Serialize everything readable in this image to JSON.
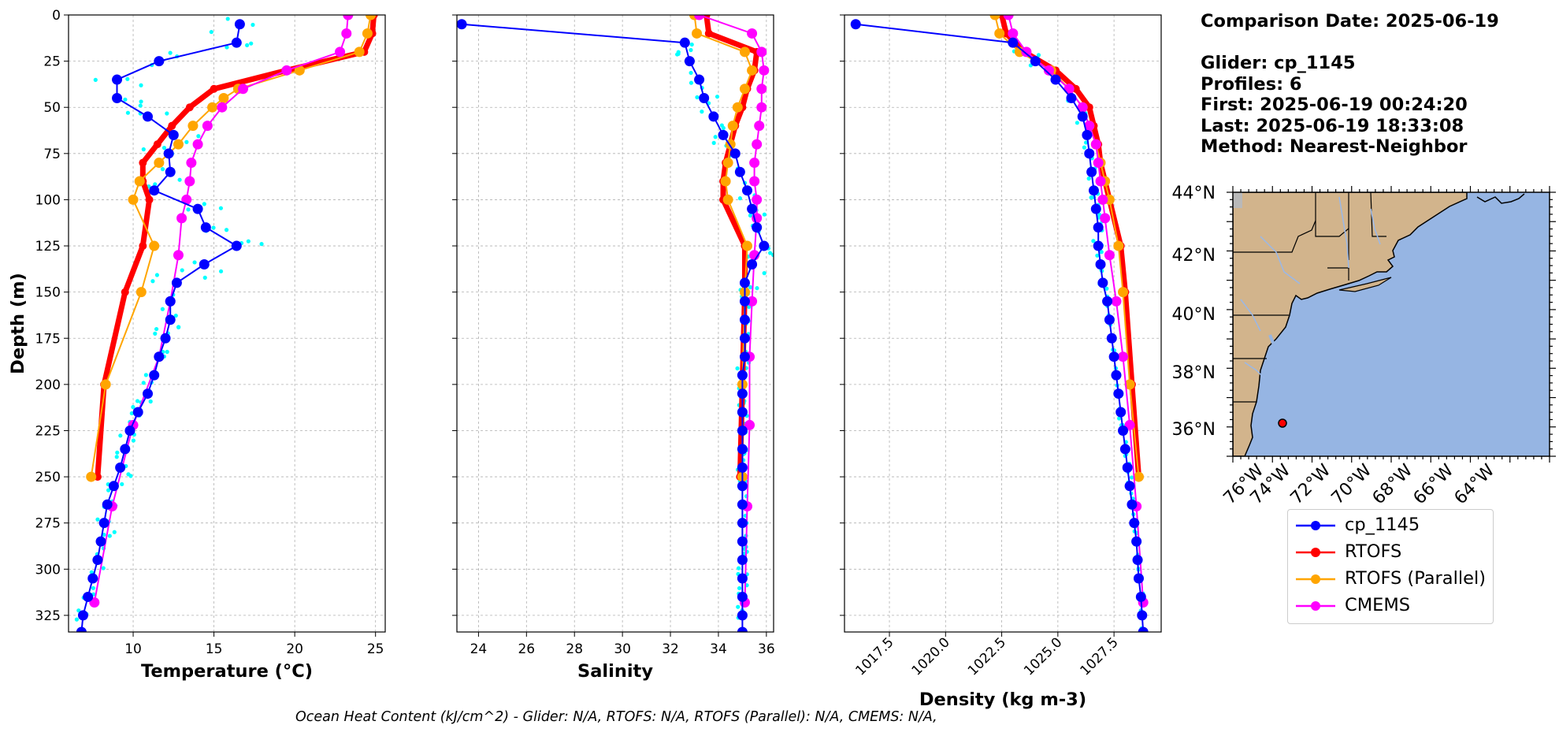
{
  "info": {
    "comparison_date": "Comparison Date: 2025-06-19",
    "glider": "Glider: cp_1145",
    "profiles": "Profiles: 6",
    "first": "First: 2025-06-19 00:24:20",
    "last": "Last: 2025-06-19 18:33:08",
    "method": "Method: Nearest-Neighbor"
  },
  "ohc_text": "Ocean Heat Content (kJ/cm^2) - Glider: N/A,  RTOFS: N/A,  RTOFS (Parallel): N/A,  CMEMS: N/A,",
  "colors": {
    "glider": "#0000ff",
    "glider_raw": "#00ffff",
    "rtofs": "#ff0000",
    "rtofs_parallel": "#ffa500",
    "cmems": "#ff00ff",
    "land": "#d2b48c",
    "ocean": "#96b5e3",
    "rivers": "#9ab8e8",
    "grid": "#b0b0b0"
  },
  "legend": [
    {
      "label": "cp_1145",
      "color": "#0000ff"
    },
    {
      "label": "RTOFS",
      "color": "#ff0000"
    },
    {
      "label": "RTOFS (Parallel)",
      "color": "#ffa500"
    },
    {
      "label": "CMEMS",
      "color": "#ff00ff"
    }
  ],
  "chart_data": [
    {
      "type": "line",
      "xlabel": "Temperature (°C)",
      "ylabel": "Depth (m)",
      "xlim": [
        6,
        25.6
      ],
      "ylim": [
        334,
        0
      ],
      "xticks": [
        10,
        15,
        20,
        25
      ],
      "yticks": [
        0,
        25,
        50,
        75,
        100,
        125,
        150,
        175,
        200,
        225,
        250,
        275,
        300,
        325
      ],
      "grid": true,
      "series": [
        {
          "name": "cp_1145",
          "depth": [
            5,
            15,
            25,
            35,
            45,
            55,
            65,
            75,
            85,
            95,
            105,
            115,
            125,
            135,
            145,
            155,
            165,
            175,
            185,
            195,
            205,
            215,
            225,
            235,
            245,
            255,
            265,
            275,
            285,
            295,
            305,
            315,
            325,
            334
          ],
          "values": [
            16.6,
            16.4,
            11.6,
            9.0,
            9.0,
            10.9,
            12.5,
            12.2,
            12.3,
            11.3,
            14.0,
            14.5,
            16.4,
            14.4,
            12.7,
            12.3,
            12.3,
            12.0,
            11.6,
            11.3,
            10.9,
            10.3,
            9.8,
            9.5,
            9.2,
            8.8,
            8.4,
            8.2,
            8.0,
            7.8,
            7.5,
            7.2,
            6.9,
            6.8
          ]
        },
        {
          "name": "RTOFS",
          "depth": [
            0,
            10,
            20,
            30,
            40,
            50,
            60,
            70,
            80,
            90,
            100,
            125,
            150,
            200,
            250
          ],
          "values": [
            24.9,
            24.8,
            24.3,
            19.5,
            15.0,
            13.5,
            12.4,
            11.5,
            10.6,
            10.6,
            11.0,
            10.6,
            9.5,
            8.2,
            7.8
          ]
        },
        {
          "name": "RTOFS (Parallel)",
          "depth": [
            0,
            10,
            20,
            30,
            40,
            45,
            50,
            60,
            70,
            80,
            90,
            100,
            125,
            150,
            200,
            250
          ],
          "values": [
            24.7,
            24.5,
            24.0,
            20.3,
            16.5,
            15.6,
            14.9,
            13.7,
            12.8,
            11.6,
            10.4,
            10.0,
            11.3,
            10.5,
            8.3,
            7.4
          ]
        },
        {
          "name": "CMEMS",
          "depth": [
            0,
            10,
            20,
            30,
            40,
            50,
            60,
            70,
            80,
            90,
            100,
            110,
            130,
            155,
            185,
            222,
            266,
            318
          ],
          "values": [
            23.3,
            23.2,
            22.8,
            19.5,
            16.8,
            15.5,
            14.6,
            14.0,
            13.6,
            13.5,
            13.3,
            13.0,
            12.8,
            12.3,
            11.6,
            10.0,
            8.7,
            7.6
          ]
        }
      ]
    },
    {
      "type": "line",
      "xlabel": "Salinity",
      "ylabel": "",
      "xlim": [
        23.1,
        36.3
      ],
      "ylim": [
        334,
        0
      ],
      "xticks": [
        24,
        26,
        28,
        30,
        32,
        34,
        36
      ],
      "yticks": [
        0,
        25,
        50,
        75,
        100,
        125,
        150,
        175,
        200,
        225,
        250,
        275,
        300,
        325
      ],
      "grid": true,
      "series": [
        {
          "name": "cp_1145",
          "depth": [
            5,
            15,
            25,
            35,
            45,
            55,
            65,
            75,
            85,
            95,
            105,
            115,
            125,
            135,
            145,
            155,
            165,
            175,
            185,
            195,
            205,
            215,
            225,
            235,
            245,
            255,
            265,
            275,
            285,
            295,
            305,
            315,
            325,
            334
          ],
          "values": [
            23.3,
            32.6,
            32.8,
            33.2,
            33.4,
            33.8,
            34.2,
            34.7,
            34.9,
            35.2,
            35.4,
            35.6,
            35.9,
            35.4,
            35.1,
            35.1,
            35.1,
            35.1,
            35.1,
            35.0,
            35.0,
            35.0,
            35.0,
            35.0,
            35.0,
            35.0,
            35.0,
            35.0,
            35.0,
            35.0,
            35.0,
            35.0,
            35.0,
            35.0
          ]
        },
        {
          "name": "RTOFS",
          "depth": [
            0,
            10,
            20,
            30,
            40,
            50,
            60,
            70,
            80,
            90,
            100,
            125,
            150,
            200,
            250
          ],
          "values": [
            33.5,
            33.6,
            35.6,
            35.5,
            35.2,
            35.0,
            34.7,
            34.5,
            34.3,
            34.2,
            34.2,
            35.1,
            35.1,
            35.0,
            34.9
          ]
        },
        {
          "name": "RTOFS (Parallel)",
          "depth": [
            0,
            10,
            20,
            30,
            40,
            50,
            60,
            70,
            80,
            90,
            100,
            125,
            150,
            200,
            250
          ],
          "values": [
            33.0,
            33.1,
            35.1,
            35.4,
            35.1,
            34.8,
            34.6,
            34.5,
            34.4,
            34.3,
            34.4,
            35.2,
            35.1,
            35.0,
            35.0
          ]
        },
        {
          "name": "CMEMS",
          "depth": [
            0,
            10,
            20,
            30,
            40,
            50,
            60,
            70,
            80,
            90,
            100,
            110,
            130,
            155,
            185,
            222,
            266,
            318
          ],
          "values": [
            33.2,
            35.4,
            35.8,
            35.9,
            35.8,
            35.8,
            35.7,
            35.6,
            35.5,
            35.5,
            35.6,
            35.6,
            35.5,
            35.4,
            35.3,
            35.3,
            35.2,
            35.1
          ]
        }
      ]
    },
    {
      "type": "line",
      "xlabel": "Density (kg m-3)",
      "ylabel": "",
      "xlim": [
        1015.5,
        1029.6
      ],
      "ylim": [
        334,
        0
      ],
      "xticks": [
        1017.5,
        1020.0,
        1022.5,
        1025.0,
        1027.5
      ],
      "yticks": [
        0,
        25,
        50,
        75,
        100,
        125,
        150,
        175,
        200,
        225,
        250,
        275,
        300,
        325
      ],
      "grid": true,
      "series": [
        {
          "name": "cp_1145",
          "depth": [
            5,
            15,
            25,
            35,
            45,
            55,
            65,
            75,
            85,
            95,
            105,
            115,
            125,
            135,
            145,
            155,
            165,
            175,
            185,
            195,
            205,
            215,
            225,
            235,
            245,
            255,
            265,
            275,
            285,
            295,
            305,
            315,
            325,
            334
          ],
          "values": [
            1016.0,
            1023.0,
            1024.0,
            1024.9,
            1025.6,
            1026.1,
            1026.3,
            1026.4,
            1026.5,
            1026.6,
            1026.7,
            1026.8,
            1026.8,
            1026.9,
            1027.0,
            1027.2,
            1027.3,
            1027.4,
            1027.5,
            1027.6,
            1027.7,
            1027.8,
            1027.9,
            1028.0,
            1028.1,
            1028.2,
            1028.3,
            1028.4,
            1028.5,
            1028.55,
            1028.6,
            1028.7,
            1028.75,
            1028.8
          ]
        },
        {
          "name": "RTOFS",
          "depth": [
            0,
            10,
            20,
            30,
            40,
            50,
            60,
            70,
            80,
            90,
            100,
            125,
            150,
            200,
            250
          ],
          "values": [
            1022.5,
            1022.7,
            1023.5,
            1024.9,
            1025.8,
            1026.4,
            1026.6,
            1026.8,
            1026.9,
            1027.1,
            1027.3,
            1027.8,
            1028.0,
            1028.3,
            1028.6
          ]
        },
        {
          "name": "RTOFS (Parallel)",
          "depth": [
            0,
            10,
            20,
            30,
            40,
            50,
            60,
            70,
            80,
            90,
            100,
            125,
            150,
            200,
            250
          ],
          "values": [
            1022.2,
            1022.4,
            1023.3,
            1024.7,
            1025.5,
            1026.1,
            1026.4,
            1026.7,
            1026.9,
            1027.1,
            1027.3,
            1027.7,
            1027.9,
            1028.2,
            1028.6
          ]
        },
        {
          "name": "CMEMS",
          "depth": [
            0,
            10,
            20,
            30,
            40,
            50,
            60,
            70,
            80,
            90,
            100,
            110,
            130,
            155,
            185,
            222,
            266,
            318
          ],
          "values": [
            1022.8,
            1023.0,
            1023.6,
            1024.6,
            1025.5,
            1026.1,
            1026.4,
            1026.7,
            1026.8,
            1026.9,
            1027.0,
            1027.1,
            1027.3,
            1027.6,
            1027.9,
            1028.2,
            1028.5,
            1028.8
          ]
        }
      ]
    }
  ],
  "map": {
    "lon_range": [
      -78,
      -63
    ],
    "lat_range": [
      35,
      44
    ],
    "lon_ticks": [
      "76°W",
      "74°W",
      "72°W",
      "70°W",
      "68°W",
      "66°W",
      "64°W"
    ],
    "lat_ticks": [
      "44°N",
      "42°N",
      "40°N",
      "38°N",
      "36°N"
    ],
    "marker": {
      "lon": -75.6,
      "lat": 36.2
    }
  }
}
